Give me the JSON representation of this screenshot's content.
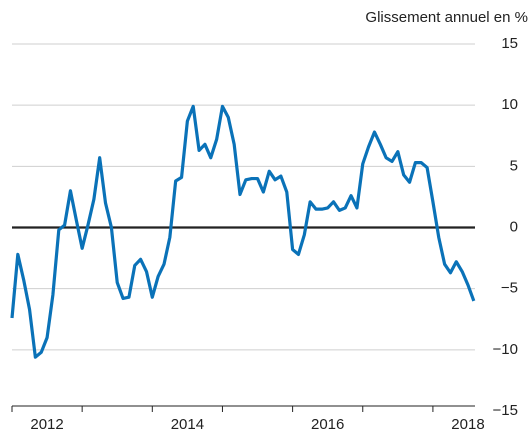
{
  "chart_data": {
    "type": "line",
    "y_axis_label": "Glissement annuel en %",
    "x": [
      2012.0,
      2012.083,
      2012.167,
      2012.25,
      2012.333,
      2012.417,
      2012.5,
      2012.583,
      2012.667,
      2012.75,
      2012.833,
      2012.917,
      2013.0,
      2013.083,
      2013.167,
      2013.25,
      2013.333,
      2013.417,
      2013.5,
      2013.583,
      2013.667,
      2013.75,
      2013.833,
      2013.917,
      2014.0,
      2014.083,
      2014.167,
      2014.25,
      2014.333,
      2014.417,
      2014.5,
      2014.583,
      2014.667,
      2014.75,
      2014.833,
      2014.917,
      2015.0,
      2015.083,
      2015.167,
      2015.25,
      2015.333,
      2015.417,
      2015.5,
      2015.583,
      2015.667,
      2015.75,
      2015.833,
      2015.917,
      2016.0,
      2016.083,
      2016.167,
      2016.25,
      2016.333,
      2016.417,
      2016.5,
      2016.583,
      2016.667,
      2016.75,
      2016.833,
      2016.917,
      2017.0,
      2017.083,
      2017.167,
      2017.25,
      2017.333,
      2017.417,
      2017.5,
      2017.583,
      2017.667,
      2017.75,
      2017.833,
      2017.917,
      2018.0,
      2018.083,
      2018.167,
      2018.25,
      2018.333,
      2018.417,
      2018.5,
      2018.583
    ],
    "series": [
      {
        "color": "#0a72b8",
        "values": [
          -7.4,
          -2.2,
          -4.3,
          -6.7,
          -10.6,
          -10.2,
          -9,
          -5.5,
          -0.2,
          0.2,
          3.0,
          0.6,
          -1.7,
          0.2,
          2.3,
          5.7,
          2,
          0,
          -4.5,
          -5.8,
          -5.7,
          -3.1,
          -2.6,
          -3.6,
          -5.7,
          -4,
          -3,
          -0.8,
          3.8,
          4.1,
          8.7,
          9.9,
          6.3,
          6.8,
          5.7,
          7.2,
          9.9,
          9,
          6.8,
          2.7,
          3.9,
          4,
          4,
          2.9,
          4.6,
          3.9,
          4.2,
          2.9,
          -1.8,
          -2.2,
          -0.6,
          2.1,
          1.5,
          1.5,
          1.6,
          2.1,
          1.4,
          1.6,
          2.6,
          1.6,
          5.2,
          6.6,
          7.8,
          6.8,
          5.7,
          5.4,
          6.2,
          4.3,
          3.7,
          5.3,
          5.3,
          4.9,
          2.1,
          -0.8,
          -3,
          -3.7,
          -2.8,
          -3.6,
          -4.7,
          -6
        ]
      }
    ],
    "xlim": [
      2012,
      2018.6
    ],
    "xticks": [
      {
        "value": 2012.5,
        "label": "2012"
      },
      {
        "value": 2014.5,
        "label": "2014"
      },
      {
        "value": 2016.5,
        "label": "2016"
      },
      {
        "value": 2018.5,
        "label": "2018"
      }
    ],
    "xtick_marks": [
      2012,
      2013,
      2014,
      2015,
      2016,
      2017,
      2018
    ],
    "ylim": [
      -15,
      15
    ],
    "yticks": [
      {
        "value": -15,
        "label": "−15"
      },
      {
        "value": -10,
        "label": "−10"
      },
      {
        "value": -5,
        "label": "−5"
      },
      0,
      5,
      10,
      15
    ],
    "grid": true
  }
}
